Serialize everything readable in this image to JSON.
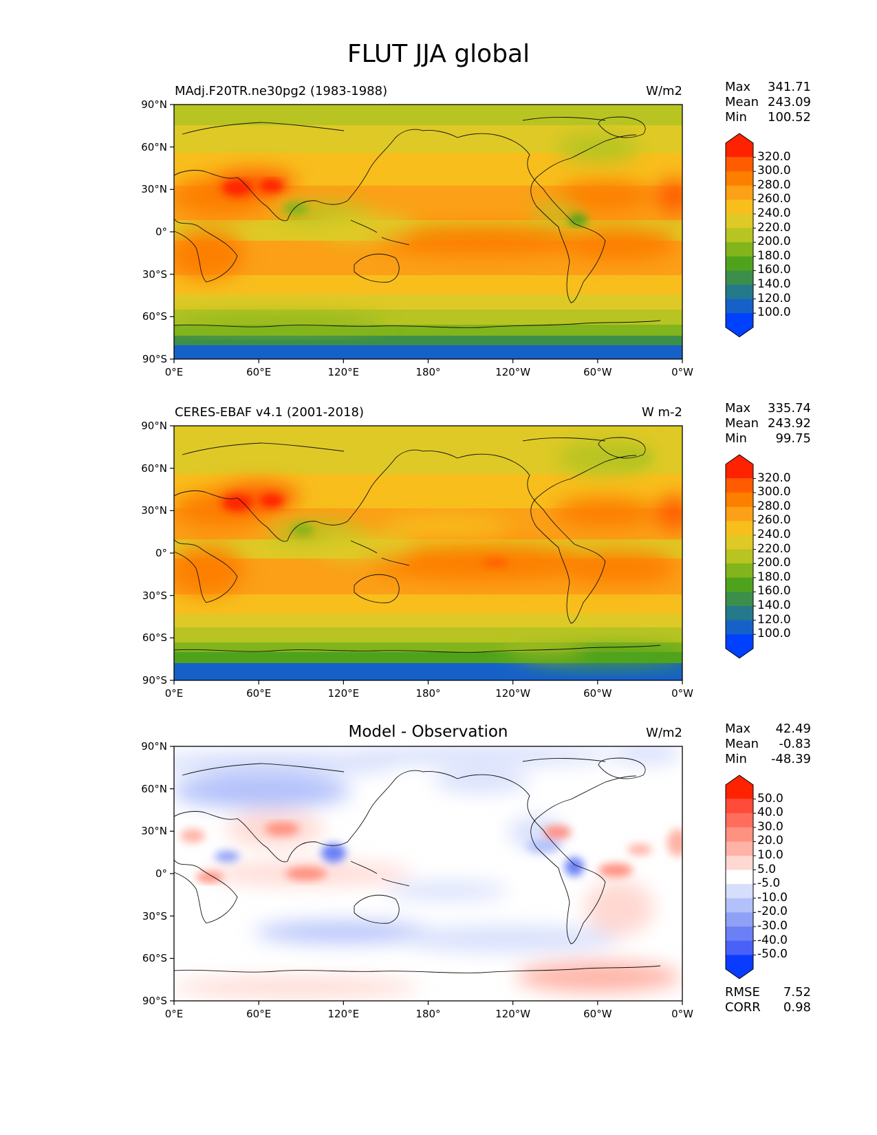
{
  "figure": {
    "title": "FLUT JJA global"
  },
  "axes": {
    "y_ticks": [
      "90°N",
      "60°N",
      "30°N",
      "0°",
      "30°S",
      "60°S",
      "90°S"
    ],
    "x_ticks": [
      "0°E",
      "60°E",
      "120°E",
      "180°",
      "120°W",
      "60°W",
      "0°W"
    ]
  },
  "panels": [
    {
      "id": "test",
      "left_title": "MAdj.F20TR.ne30pg2 (1983-1988)",
      "center_title": "",
      "units": "W/m2",
      "stats": [
        {
          "label": "Max",
          "value": "341.71"
        },
        {
          "label": "Mean",
          "value": "243.09"
        },
        {
          "label": "Min",
          "value": "100.52"
        }
      ],
      "colorbar_labels": [
        "320.0",
        "300.0",
        "280.0",
        "260.0",
        "240.0",
        "220.0",
        "200.0",
        "180.0",
        "160.0",
        "140.0",
        "120.0",
        "100.0"
      ],
      "colorbar_colors": [
        "#ff2200",
        "#ff5c00",
        "#fd7f00",
        "#fba017",
        "#f8be1c",
        "#dfc926",
        "#b7c422",
        "#82b41c",
        "#4fa31c",
        "#3c8f4a",
        "#24798a",
        "#1661c8",
        "#0040ff"
      ],
      "extra_stats": []
    },
    {
      "id": "reference",
      "left_title": "CERES-EBAF v4.1 (2001-2018)",
      "center_title": "",
      "units": "W m-2",
      "stats": [
        {
          "label": "Max",
          "value": "335.74"
        },
        {
          "label": "Mean",
          "value": "243.92"
        },
        {
          "label": "Min",
          "value": "99.75"
        }
      ],
      "colorbar_labels": [
        "320.0",
        "300.0",
        "280.0",
        "260.0",
        "240.0",
        "220.0",
        "200.0",
        "180.0",
        "160.0",
        "140.0",
        "120.0",
        "100.0"
      ],
      "colorbar_colors": [
        "#ff2200",
        "#ff5c00",
        "#fd7f00",
        "#fba017",
        "#f8be1c",
        "#dfc926",
        "#b7c422",
        "#82b41c",
        "#4fa31c",
        "#3c8f4a",
        "#24798a",
        "#1661c8",
        "#0040ff"
      ],
      "extra_stats": []
    },
    {
      "id": "difference",
      "left_title": "",
      "center_title": "Model - Observation",
      "units": "W/m2",
      "stats": [
        {
          "label": "Max",
          "value": "42.49"
        },
        {
          "label": "Mean",
          "value": "-0.83"
        },
        {
          "label": "Min",
          "value": "-48.39"
        }
      ],
      "colorbar_labels": [
        "50.0",
        "40.0",
        "30.0",
        "20.0",
        "10.0",
        "5.0",
        "-5.0",
        "-10.0",
        "-20.0",
        "-30.0",
        "-40.0",
        "-50.0"
      ],
      "colorbar_colors": [
        "#ff2200",
        "#ff4b3a",
        "#ff6e5c",
        "#ff9180",
        "#ffb2a6",
        "#ffd8d1",
        "#ffffff",
        "#d6defc",
        "#b3c1fa",
        "#8ea1f7",
        "#6b80f5",
        "#4a61f8",
        "#0a3cff"
      ],
      "extra_stats": [
        {
          "label": "RMSE",
          "value": "7.52"
        },
        {
          "label": "CORR",
          "value": "0.98"
        }
      ]
    }
  ]
}
